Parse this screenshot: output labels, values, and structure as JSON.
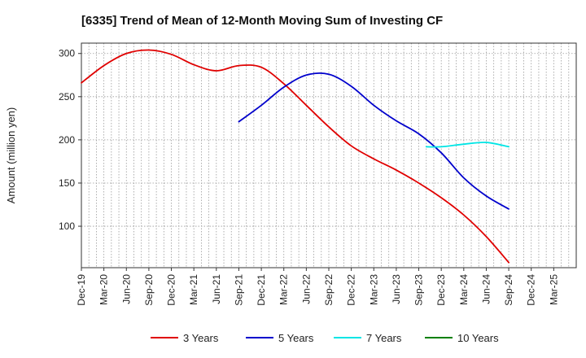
{
  "chart_data": {
    "type": "line",
    "title": "[6335]  Trend of Mean of 12-Month Moving Sum of Investing CF",
    "xlabel": "",
    "ylabel": "Amount (million yen)",
    "ylim": [
      52,
      312
    ],
    "yticks": [
      100,
      150,
      200,
      250,
      300
    ],
    "xlim": [
      0,
      66
    ],
    "grid": true,
    "legend_position": "bottom",
    "x_tick_labels": [
      "Dec-19",
      "Mar-20",
      "Jun-20",
      "Sep-20",
      "Dec-20",
      "Mar-21",
      "Jun-21",
      "Sep-21",
      "Dec-21",
      "Mar-22",
      "Jun-22",
      "Sep-22",
      "Dec-22",
      "Mar-23",
      "Jun-23",
      "Sep-23",
      "Dec-23",
      "Mar-24",
      "Jun-24",
      "Sep-24",
      "Dec-24",
      "Mar-25"
    ],
    "series": [
      {
        "name": "3 Years",
        "color": "#e00000",
        "points": [
          [
            0,
            266
          ],
          [
            3,
            286
          ],
          [
            6,
            300
          ],
          [
            9,
            304
          ],
          [
            12,
            299
          ],
          [
            15,
            287
          ],
          [
            18,
            280
          ],
          [
            21,
            286
          ],
          [
            24,
            284
          ],
          [
            27,
            265
          ],
          [
            30,
            240
          ],
          [
            33,
            215
          ],
          [
            36,
            193
          ],
          [
            39,
            178
          ],
          [
            42,
            165
          ],
          [
            45,
            150
          ],
          [
            48,
            133
          ],
          [
            51,
            113
          ],
          [
            54,
            88
          ],
          [
            57,
            58
          ]
        ]
      },
      {
        "name": "5 Years",
        "color": "#0000cc",
        "points": [
          [
            21,
            221
          ],
          [
            24,
            240
          ],
          [
            27,
            261
          ],
          [
            30,
            275
          ],
          [
            33,
            276
          ],
          [
            36,
            262
          ],
          [
            39,
            240
          ],
          [
            42,
            222
          ],
          [
            45,
            207
          ],
          [
            48,
            185
          ],
          [
            51,
            156
          ],
          [
            54,
            135
          ],
          [
            57,
            120
          ]
        ]
      },
      {
        "name": "7 Years",
        "color": "#00e5e5",
        "points": [
          [
            46,
            192
          ],
          [
            48,
            192
          ],
          [
            51,
            195
          ],
          [
            54,
            197
          ],
          [
            57,
            192
          ]
        ]
      },
      {
        "name": "10 Years",
        "color": "#008000",
        "points": []
      }
    ]
  }
}
